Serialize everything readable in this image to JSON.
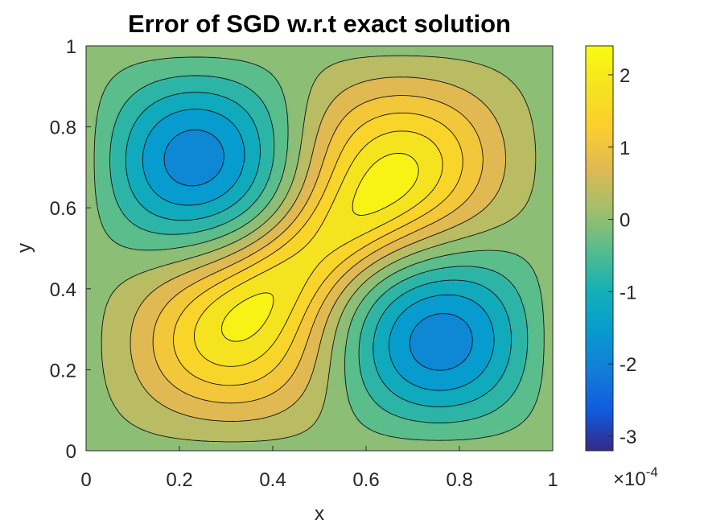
{
  "chart_data": {
    "type": "heatmap",
    "subtype": "filled-contour",
    "title": "Error of SGD w.r.t exact solution",
    "xlabel": "x",
    "ylabel": "y",
    "xlim": [
      0,
      1
    ],
    "ylim": [
      0,
      1
    ],
    "x_ticks": [
      "0",
      "0.2",
      "0.4",
      "0.6",
      "0.8",
      "1"
    ],
    "y_ticks": [
      "0",
      "0.2",
      "0.4",
      "0.6",
      "0.8",
      "1"
    ],
    "colorbar": {
      "range": [
        -3.2,
        2.4
      ],
      "ticks": [
        "2",
        "1",
        "0",
        "-1",
        "-2",
        "-3"
      ],
      "tick_values": [
        2,
        1,
        0,
        -1,
        -2,
        -3
      ],
      "multiplier_label": "×10",
      "multiplier_exponent": "-4",
      "colormap": "parula"
    },
    "extrema": [
      {
        "kind": "min",
        "x": 0.17,
        "y": 0.77,
        "value": -3.2
      },
      {
        "kind": "max",
        "x": 0.7,
        "y": 0.75,
        "value": 2.3
      },
      {
        "kind": "max",
        "x": 0.28,
        "y": 0.23,
        "value": 2.3
      },
      {
        "kind": "min",
        "x": 0.82,
        "y": 0.22,
        "value": -3.2
      }
    ],
    "saddle": {
      "x": 0.49,
      "y": 0.48,
      "value": 1.6
    },
    "boundary_value": 0,
    "contour_levels": 15,
    "grid": false
  }
}
